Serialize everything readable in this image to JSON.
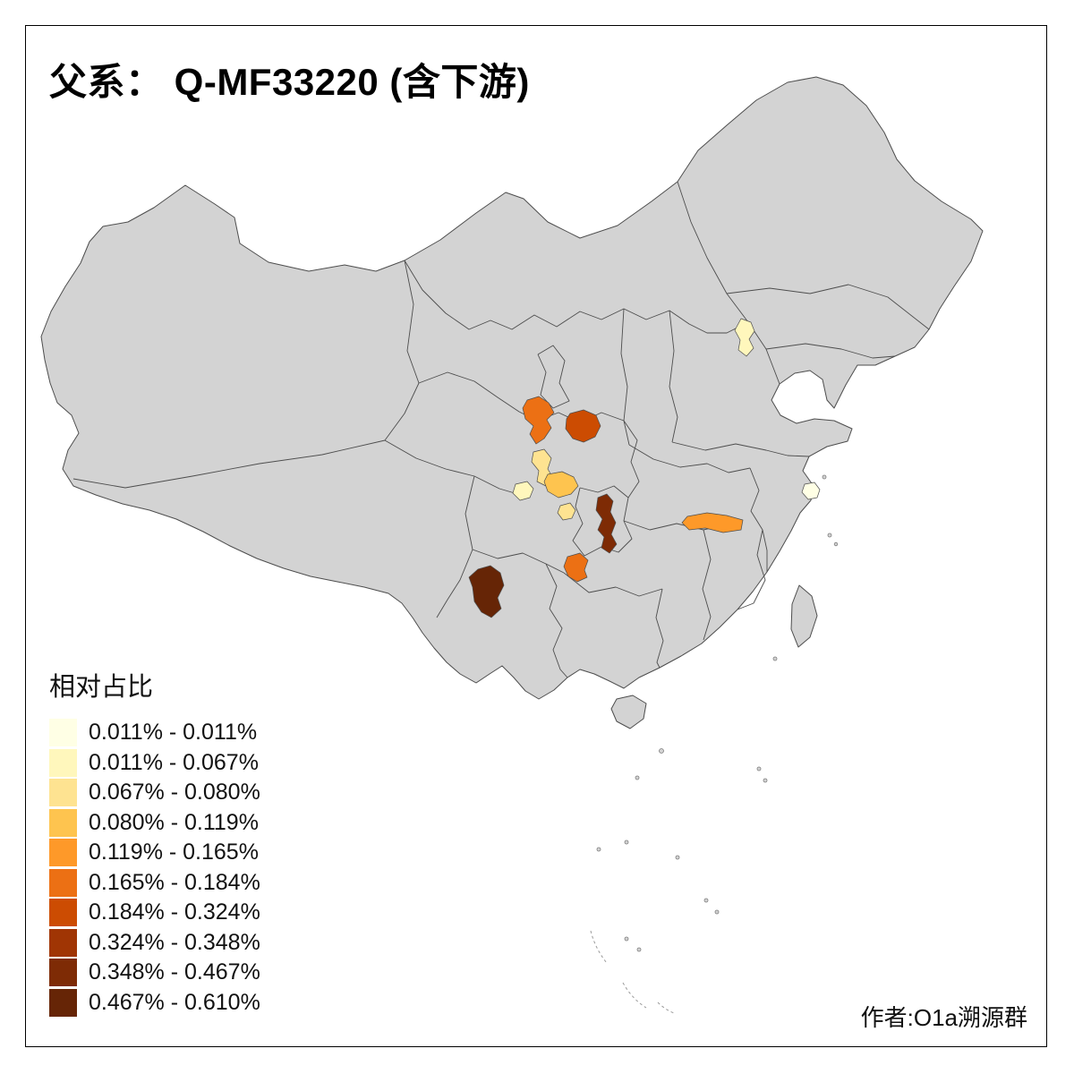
{
  "title": "父系： Q-MF33220 (含下游)",
  "attribution": "作者:O1a溯源群",
  "legend": {
    "title": "相对占比",
    "items": [
      {
        "label": "0.011% - 0.011%",
        "color": "#FFFFE5"
      },
      {
        "label": "0.011% - 0.067%",
        "color": "#FFF7BC"
      },
      {
        "label": "0.067% - 0.080%",
        "color": "#FEE391"
      },
      {
        "label": "0.080% - 0.119%",
        "color": "#FEC44F"
      },
      {
        "label": "0.119% - 0.165%",
        "color": "#FE9929"
      },
      {
        "label": "0.165% - 0.184%",
        "color": "#EC7014"
      },
      {
        "label": "0.184% - 0.324%",
        "color": "#CC4C02"
      },
      {
        "label": "0.324% - 0.348%",
        "color": "#A03504"
      },
      {
        "label": "0.348% - 0.467%",
        "color": "#7E2B05"
      },
      {
        "label": "0.467% - 0.610%",
        "color": "#662506"
      }
    ]
  },
  "map": {
    "name": "china-prefecture-choropleth",
    "base_color": "#d3d3d3",
    "border_color": "#4d4d4d",
    "regions": [
      {
        "id": "beijing-area",
        "color": "#FFF7BC"
      },
      {
        "id": "shanghai-area",
        "color": "#FFFFE5"
      },
      {
        "id": "south-gansu",
        "color": "#EC7014"
      },
      {
        "id": "south-shaanxi",
        "color": "#CC4C02"
      },
      {
        "id": "north-sichuan",
        "color": "#FEE391"
      },
      {
        "id": "central-sichuan",
        "color": "#FEC44F"
      },
      {
        "id": "west-sichuan",
        "color": "#FFF7BC"
      },
      {
        "id": "east-sichuan",
        "color": "#FEE391"
      },
      {
        "id": "chongqing-west-hubei",
        "color": "#7E2B05"
      },
      {
        "id": "hubei-jiangxi-border",
        "color": "#FE9929"
      },
      {
        "id": "central-guizhou",
        "color": "#EC7014"
      },
      {
        "id": "west-yunnan",
        "color": "#662506"
      }
    ]
  }
}
